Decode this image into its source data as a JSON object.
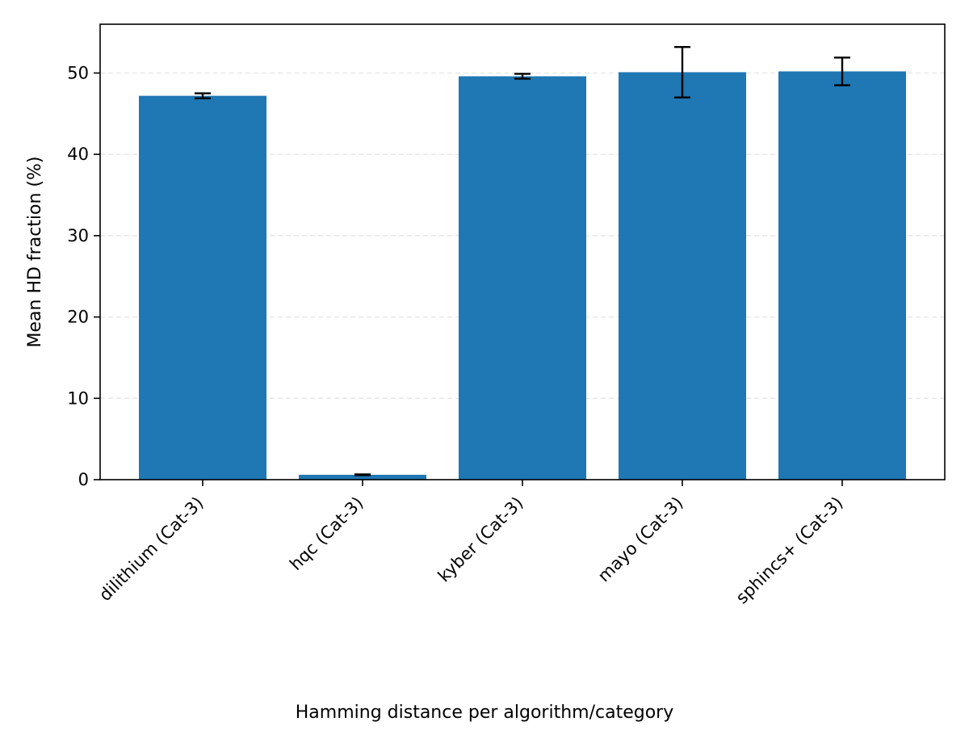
{
  "chart_data": {
    "type": "bar",
    "title": "",
    "xlabel": "Hamming distance per algorithm/category",
    "ylabel": "Mean HD fraction (%)",
    "ylim": [
      0,
      56
    ],
    "yticks": [
      0,
      10,
      20,
      30,
      40,
      50
    ],
    "grid": "y-dashed",
    "bar_color": "#1f77b4",
    "categories": [
      "dilithium (Cat-3)",
      "hqc (Cat-3)",
      "kyber (Cat-3)",
      "mayo (Cat-3)",
      "sphincs+ (Cat-3)"
    ],
    "values": [
      47.2,
      0.6,
      49.6,
      50.1,
      50.2
    ],
    "errors": [
      0.3,
      0.05,
      0.3,
      3.1,
      1.7
    ]
  }
}
